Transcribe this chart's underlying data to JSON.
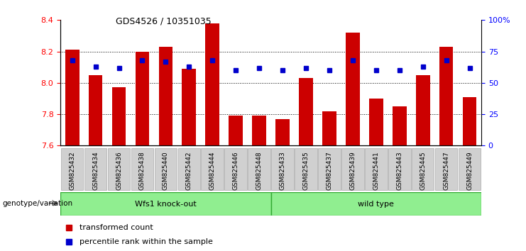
{
  "title": "GDS4526 / 10351035",
  "samples": [
    "GSM825432",
    "GSM825434",
    "GSM825436",
    "GSM825438",
    "GSM825440",
    "GSM825442",
    "GSM825444",
    "GSM825446",
    "GSM825448",
    "GSM825433",
    "GSM825435",
    "GSM825437",
    "GSM825439",
    "GSM825441",
    "GSM825443",
    "GSM825445",
    "GSM825447",
    "GSM825449"
  ],
  "bar_values": [
    8.21,
    8.05,
    7.97,
    8.2,
    8.23,
    8.09,
    8.38,
    7.79,
    7.79,
    7.77,
    8.03,
    7.82,
    8.32,
    7.9,
    7.85,
    8.05,
    8.23,
    7.91
  ],
  "percentile_pct": [
    68,
    63,
    62,
    68,
    67,
    63,
    68,
    60,
    62,
    60,
    62,
    60,
    68,
    60,
    60,
    63,
    68,
    62
  ],
  "group1_count": 9,
  "group1_label": "Wfs1 knock-out",
  "group2_label": "wild type",
  "bar_color": "#cc0000",
  "percentile_color": "#0000cc",
  "bar_bottom": 7.6,
  "ylim_min": 7.6,
  "ylim_max": 8.4,
  "yticks": [
    7.6,
    7.8,
    8.0,
    8.2,
    8.4
  ],
  "right_ytick_pcts": [
    0,
    25,
    50,
    75,
    100
  ],
  "right_ytick_labels": [
    "0",
    "25",
    "50",
    "75",
    "100%"
  ],
  "grid_pcts": [
    25,
    50,
    75
  ],
  "legend_transformed": "transformed count",
  "legend_percentile": "percentile rank within the sample",
  "xlabel_left": "genotype/variation",
  "group_bg_color": "#90ee90",
  "bar_width": 0.6,
  "tick_label_bg": "#d0d0d0",
  "tick_label_edge": "#aaaaaa"
}
